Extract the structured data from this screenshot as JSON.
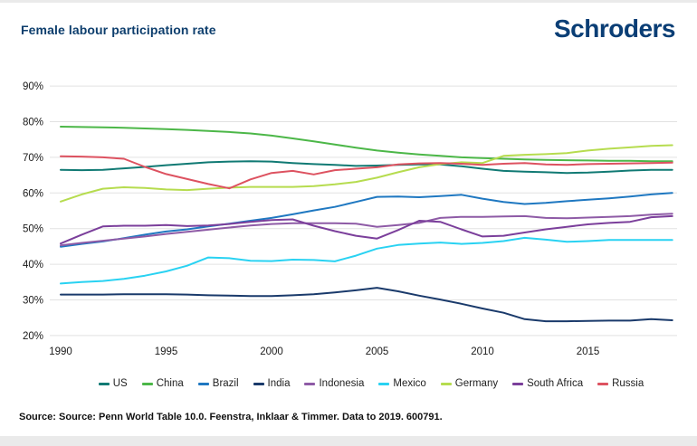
{
  "header": {
    "title": "Female labour participation rate",
    "logo": "Schroders"
  },
  "chart_data": {
    "type": "line",
    "title": "Female labour participation rate",
    "x_start_year": 1990,
    "x_end_year": 2019,
    "x": [
      1990,
      1991,
      1992,
      1993,
      1994,
      1995,
      1996,
      1997,
      1998,
      1999,
      2000,
      2001,
      2002,
      2003,
      2004,
      2005,
      2006,
      2007,
      2008,
      2009,
      2010,
      2011,
      2012,
      2013,
      2014,
      2015,
      2016,
      2017,
      2018,
      2019
    ],
    "x_tick_labels": [
      "1990",
      "1995",
      "2000",
      "2005",
      "2010",
      "2015"
    ],
    "x_tick_years": [
      1990,
      1995,
      2000,
      2005,
      2010,
      2015
    ],
    "y_ticks": [
      20,
      30,
      40,
      50,
      60,
      70,
      80,
      90
    ],
    "y_tick_suffix": "%",
    "ylim": [
      20,
      90
    ],
    "grid": "horizontal",
    "legend_position": "bottom",
    "series": [
      {
        "name": "US",
        "color": "#117a74",
        "values": [
          66.5,
          66.4,
          66.5,
          66.9,
          67.3,
          67.8,
          68.2,
          68.6,
          68.8,
          68.9,
          68.8,
          68.4,
          68.1,
          67.9,
          67.6,
          67.7,
          67.9,
          68.0,
          68.0,
          67.5,
          66.8,
          66.2,
          66.0,
          65.8,
          65.6,
          65.7,
          66.0,
          66.3,
          66.5,
          66.5
        ]
      },
      {
        "name": "China",
        "color": "#4cb748",
        "values": [
          78.6,
          78.5,
          78.4,
          78.3,
          78.1,
          77.9,
          77.7,
          77.4,
          77.1,
          76.7,
          76.1,
          75.3,
          74.5,
          73.6,
          72.7,
          71.9,
          71.3,
          70.8,
          70.4,
          70.0,
          69.8,
          69.6,
          69.4,
          69.3,
          69.2,
          69.1,
          69.0,
          69.0,
          68.9,
          68.9
        ]
      },
      {
        "name": "Brazil",
        "color": "#1f78c1",
        "values": [
          44.9,
          45.7,
          46.4,
          47.3,
          48.3,
          49.2,
          49.8,
          50.6,
          51.4,
          52.2,
          53.0,
          54.0,
          55.1,
          56.1,
          57.5,
          58.9,
          59.0,
          58.8,
          59.1,
          59.5,
          58.4,
          57.5,
          56.9,
          57.2,
          57.7,
          58.1,
          58.5,
          59.0,
          59.6,
          60.0
        ]
      },
      {
        "name": "India",
        "color": "#1a3a6b",
        "values": [
          31.5,
          31.5,
          31.5,
          31.6,
          31.6,
          31.6,
          31.5,
          31.3,
          31.2,
          31.1,
          31.1,
          31.3,
          31.6,
          32.1,
          32.7,
          33.4,
          32.4,
          31.2,
          30.1,
          28.9,
          27.6,
          26.4,
          24.6,
          24.0,
          24.0,
          24.1,
          24.2,
          24.2,
          24.6,
          24.3
        ]
      },
      {
        "name": "Indonesia",
        "color": "#8e5ba6",
        "values": [
          45.3,
          46.0,
          46.6,
          47.2,
          47.8,
          48.5,
          49.1,
          49.7,
          50.3,
          50.9,
          51.3,
          51.5,
          51.5,
          51.5,
          51.4,
          50.5,
          51.0,
          51.6,
          53.0,
          53.3,
          53.3,
          53.4,
          53.5,
          53.0,
          52.9,
          53.1,
          53.3,
          53.5,
          53.9,
          54.2
        ]
      },
      {
        "name": "Mexico",
        "color": "#29d2f2",
        "values": [
          34.6,
          35.0,
          35.3,
          35.9,
          36.8,
          38.0,
          39.6,
          41.9,
          41.7,
          41.0,
          40.9,
          41.3,
          41.2,
          40.8,
          42.4,
          44.4,
          45.4,
          45.8,
          46.1,
          45.7,
          46.0,
          46.5,
          47.4,
          46.9,
          46.3,
          46.5,
          46.8,
          46.8,
          46.8,
          46.8
        ]
      },
      {
        "name": "Germany",
        "color": "#b6dc4f",
        "values": [
          57.6,
          59.6,
          61.2,
          61.6,
          61.4,
          61.0,
          60.8,
          61.2,
          61.5,
          61.7,
          61.7,
          61.7,
          61.9,
          62.4,
          63.1,
          64.3,
          65.8,
          67.2,
          68.1,
          68.6,
          68.4,
          70.4,
          70.7,
          70.9,
          71.2,
          71.9,
          72.4,
          72.8,
          73.2,
          73.4
        ]
      },
      {
        "name": "South Africa",
        "color": "#7b3f9b",
        "values": [
          45.8,
          48.3,
          50.6,
          50.8,
          50.8,
          51.0,
          50.7,
          50.9,
          51.3,
          51.9,
          52.4,
          52.6,
          50.8,
          49.3,
          48.0,
          47.2,
          49.6,
          52.2,
          51.9,
          49.8,
          47.8,
          48.0,
          48.9,
          49.8,
          50.5,
          51.2,
          51.6,
          51.9,
          53.2,
          53.5
        ]
      },
      {
        "name": "Russia",
        "color": "#dd5260",
        "values": [
          70.3,
          70.2,
          70.0,
          69.6,
          67.3,
          65.3,
          63.9,
          62.5,
          61.3,
          63.8,
          65.6,
          66.2,
          65.2,
          66.4,
          66.8,
          67.2,
          68.0,
          68.3,
          68.4,
          68.2,
          67.9,
          68.2,
          68.4,
          68.0,
          67.9,
          68.1,
          68.2,
          68.3,
          68.4,
          68.5
        ]
      }
    ]
  },
  "footer": {
    "source": "Source: Source: Penn World Table 10.0. Feenstra, Inklaar & Timmer. Data to 2019. 600791."
  }
}
